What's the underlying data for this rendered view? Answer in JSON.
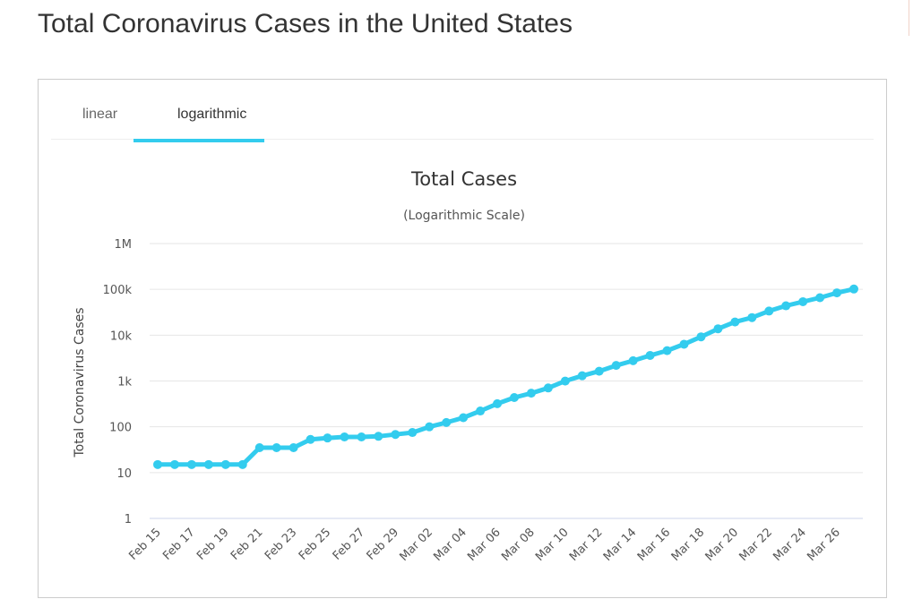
{
  "page": {
    "title": "Total Coronavirus Cases in the United States"
  },
  "tabs": [
    {
      "label": "linear",
      "active": false
    },
    {
      "label": "logarithmic",
      "active": true
    }
  ],
  "colors": {
    "accent": "#33ccee",
    "grid": "#e6e6e6",
    "axis": "#ccd6eb"
  },
  "chart_data": {
    "type": "line",
    "title": "Total Cases",
    "subtitle": "(Logarithmic Scale)",
    "ylabel": "Total Coronavirus Cases",
    "xlabel": "",
    "y_scale": "log",
    "ylim": [
      1,
      1000000
    ],
    "y_ticks": [
      {
        "value": 1,
        "label": "1"
      },
      {
        "value": 10,
        "label": "10"
      },
      {
        "value": 100,
        "label": "100"
      },
      {
        "value": 1000,
        "label": "1k"
      },
      {
        "value": 10000,
        "label": "10k"
      },
      {
        "value": 100000,
        "label": "100k"
      },
      {
        "value": 1000000,
        "label": "1M"
      }
    ],
    "x_tick_labels": [
      "Feb 15",
      "Feb 17",
      "Feb 19",
      "Feb 21",
      "Feb 23",
      "Feb 25",
      "Feb 27",
      "Feb 29",
      "Mar 02",
      "Mar 04",
      "Mar 06",
      "Mar 08",
      "Mar 10",
      "Mar 12",
      "Mar 14",
      "Mar 16",
      "Mar 18",
      "Mar 20",
      "Mar 22",
      "Mar 24",
      "Mar 26"
    ],
    "series": [
      {
        "name": "Total Cases",
        "x": [
          "Feb 15",
          "Feb 16",
          "Feb 17",
          "Feb 18",
          "Feb 19",
          "Feb 20",
          "Feb 21",
          "Feb 22",
          "Feb 23",
          "Feb 24",
          "Feb 25",
          "Feb 26",
          "Feb 27",
          "Feb 28",
          "Feb 29",
          "Mar 01",
          "Mar 02",
          "Mar 03",
          "Mar 04",
          "Mar 05",
          "Mar 06",
          "Mar 07",
          "Mar 08",
          "Mar 09",
          "Mar 10",
          "Mar 11",
          "Mar 12",
          "Mar 13",
          "Mar 14",
          "Mar 15",
          "Mar 16",
          "Mar 17",
          "Mar 18",
          "Mar 19",
          "Mar 20",
          "Mar 21",
          "Mar 22",
          "Mar 23",
          "Mar 24",
          "Mar 25",
          "Mar 26",
          "Mar 27"
        ],
        "values": [
          15,
          15,
          15,
          15,
          15,
          15,
          35,
          35,
          35,
          53,
          57,
          60,
          60,
          62,
          68,
          75,
          100,
          124,
          158,
          221,
          319,
          435,
          541,
          704,
          994,
          1301,
          1630,
          2183,
          2770,
          3613,
          4596,
          6344,
          9197,
          13779,
          19367,
          24192,
          33592,
          43734,
          53740,
          65778,
          83836,
          101657
        ]
      }
    ]
  }
}
